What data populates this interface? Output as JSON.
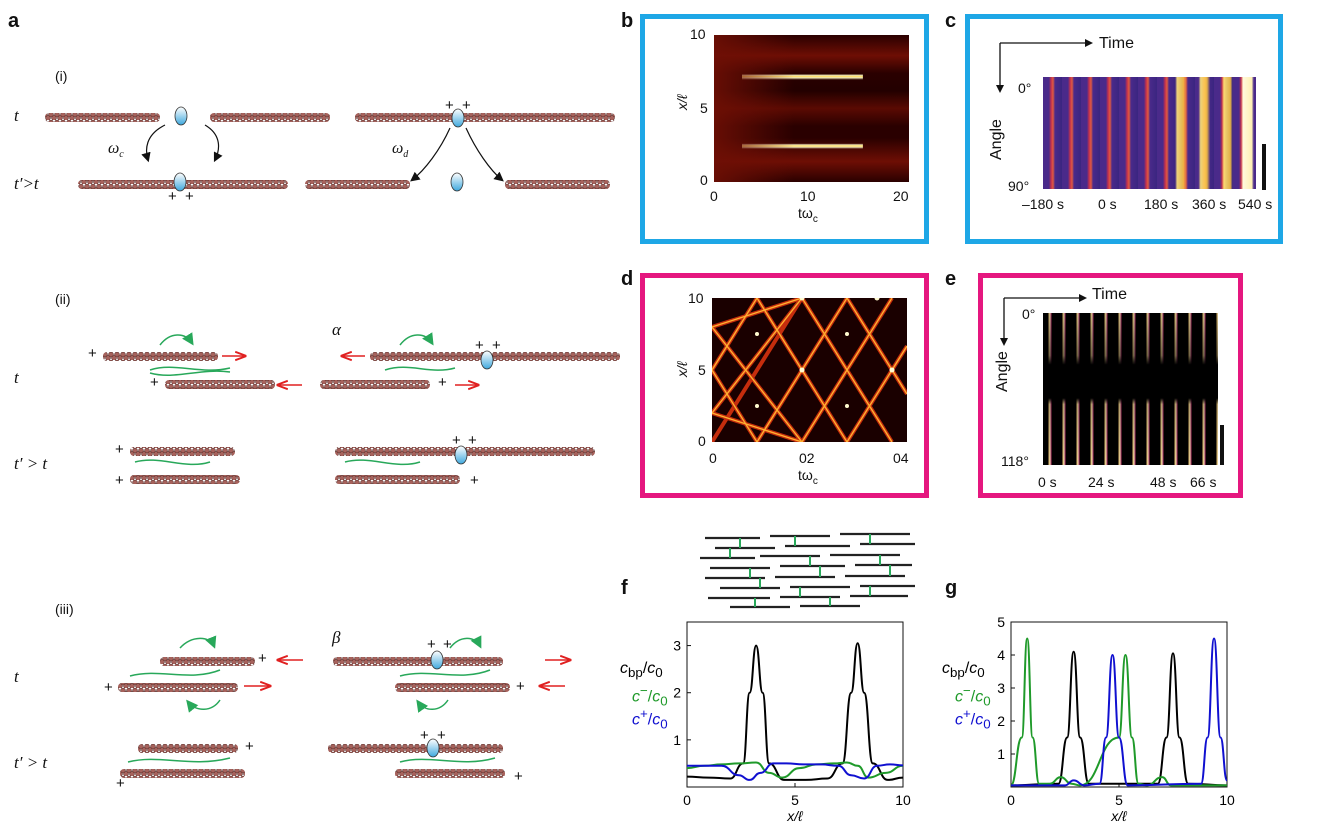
{
  "colors": {
    "blue_frame": "#1ea7e6",
    "pink_frame": "#e5177f",
    "filament": "#8a4a45",
    "motor": "#28a85a",
    "arrow_red": "#e02020",
    "droplet": "#3ea8dd",
    "bp": "#000000",
    "cminus": "#1f9a2a",
    "cplus": "#1010d0"
  },
  "panel_a": {
    "label": "a",
    "sections": {
      "i": {
        "tag": "(i)",
        "t": "t",
        "tprime": "t′>t",
        "omega_c": "ω",
        "omega_c_sub": "c",
        "omega_d": "ω",
        "omega_d_sub": "d",
        "plus": "+"
      },
      "ii": {
        "tag": "(ii)",
        "greek": "α",
        "t": "t",
        "tprime": "t′ > t",
        "plus": "+"
      },
      "iii": {
        "tag": "(iii)",
        "greek": "β",
        "t": "t",
        "tprime": "t′ > t",
        "plus": "+"
      }
    }
  },
  "panel_b": {
    "label": "b",
    "ylabel": "x/ℓ",
    "xlabel": "tω",
    "xlabel_sub": "c",
    "yticks": [
      "0",
      "5",
      "10"
    ],
    "xticks": [
      "0",
      "10",
      "20"
    ]
  },
  "panel_c": {
    "label": "c",
    "time_label": "Time",
    "angle_label": "Angle",
    "angle_top": "0°",
    "angle_bottom": "90°",
    "xticks": [
      "–180 s",
      "0 s",
      "180 s",
      "360 s",
      "540 s"
    ]
  },
  "panel_d": {
    "label": "d",
    "ylabel": "x/ℓ",
    "xlabel": "tω",
    "xlabel_sub": "c",
    "yticks": [
      "0",
      "5",
      "10"
    ],
    "xticks": [
      "0",
      "02",
      "04"
    ]
  },
  "panel_e": {
    "label": "e",
    "time_label": "Time",
    "angle_label": "Angle",
    "angle_top": "0°",
    "angle_bottom": "118°",
    "xticks": [
      "0 s",
      "24 s",
      "48 s",
      "66 s"
    ]
  },
  "chart_data": [
    {
      "panel": "f",
      "type": "line",
      "xlabel": "x/ℓ",
      "xlim": [
        0,
        10
      ],
      "ylim": [
        0,
        3.5
      ],
      "xticks": [
        "0",
        "5",
        "10"
      ],
      "yticks": [
        "1",
        "2",
        "3"
      ],
      "legend": [
        "c_bp/c_0",
        "c⁻/c_0",
        "c⁺/c_0"
      ],
      "series": [
        {
          "name": "c_bp/c_0",
          "x": [
            0,
            1,
            2,
            2.6,
            2.9,
            3.2,
            3.5,
            3.8,
            4.5,
            5.5,
            6.5,
            7.2,
            7.6,
            7.9,
            8.2,
            8.6,
            9.3,
            10
          ],
          "y": [
            0.22,
            0.2,
            0.18,
            0.5,
            2.0,
            3.0,
            2.0,
            0.5,
            0.15,
            0.15,
            0.18,
            0.5,
            2.0,
            3.05,
            2.0,
            0.5,
            0.15,
            0.2
          ]
        },
        {
          "name": "c⁻/c_0",
          "x": [
            0,
            0.8,
            1.6,
            2.4,
            3.2,
            3.8,
            4.4,
            5.2,
            6.0,
            6.8,
            7.4,
            7.9,
            8.4,
            9.2,
            10
          ],
          "y": [
            0.4,
            0.45,
            0.48,
            0.5,
            0.52,
            0.3,
            0.2,
            0.4,
            0.48,
            0.5,
            0.52,
            0.45,
            0.2,
            0.3,
            0.45
          ]
        },
        {
          "name": "c⁺/c_0",
          "x": [
            0,
            0.8,
            1.6,
            2.4,
            2.9,
            3.4,
            4.0,
            4.6,
            5.4,
            6.2,
            7.0,
            7.6,
            8.2,
            8.8,
            9.4,
            10
          ],
          "y": [
            0.45,
            0.45,
            0.45,
            0.25,
            0.15,
            0.3,
            0.5,
            0.5,
            0.48,
            0.48,
            0.45,
            0.25,
            0.18,
            0.45,
            0.48,
            0.46
          ]
        }
      ]
    },
    {
      "panel": "g",
      "type": "line",
      "xlabel": "x/ℓ",
      "xlim": [
        0,
        10
      ],
      "ylim": [
        0,
        5
      ],
      "xticks": [
        "0",
        "5",
        "10"
      ],
      "yticks": [
        "1",
        "2",
        "3",
        "4",
        "5"
      ],
      "legend": [
        "c_bp/c_0",
        "c⁻/c_0",
        "c⁺/c_0"
      ],
      "series": [
        {
          "name": "c_bp/c_0",
          "x": [
            0,
            2.2,
            2.6,
            2.9,
            3.2,
            3.6,
            6.8,
            7.2,
            7.5,
            7.8,
            8.2,
            10
          ],
          "y": [
            0.05,
            0.1,
            1.5,
            4.1,
            1.5,
            0.1,
            0.1,
            1.5,
            4.05,
            1.5,
            0.1,
            0.05
          ]
        },
        {
          "name": "c⁻/c_0",
          "x": [
            0,
            0.5,
            0.75,
            1.0,
            1.3,
            1.8,
            2.3,
            2.8,
            3.2,
            5.0,
            5.3,
            5.6,
            5.9,
            6.3,
            7.0,
            7.4,
            7.8,
            10
          ],
          "y": [
            0.05,
            1.5,
            4.5,
            1.5,
            0.1,
            0.1,
            0.3,
            0.1,
            0.05,
            1.5,
            4.0,
            1.5,
            0.1,
            0.05,
            0.3,
            0.05,
            0.05,
            0.05
          ]
        },
        {
          "name": "c⁺/c_0",
          "x": [
            0,
            2.5,
            2.9,
            3.4,
            4.1,
            4.4,
            4.7,
            5.0,
            5.4,
            8.8,
            9.1,
            9.4,
            9.7,
            10
          ],
          "y": [
            0.05,
            0.05,
            0.2,
            0.05,
            0.1,
            1.5,
            4.0,
            1.5,
            0.05,
            0.1,
            1.5,
            4.5,
            1.5,
            0.2
          ]
        }
      ]
    }
  ]
}
